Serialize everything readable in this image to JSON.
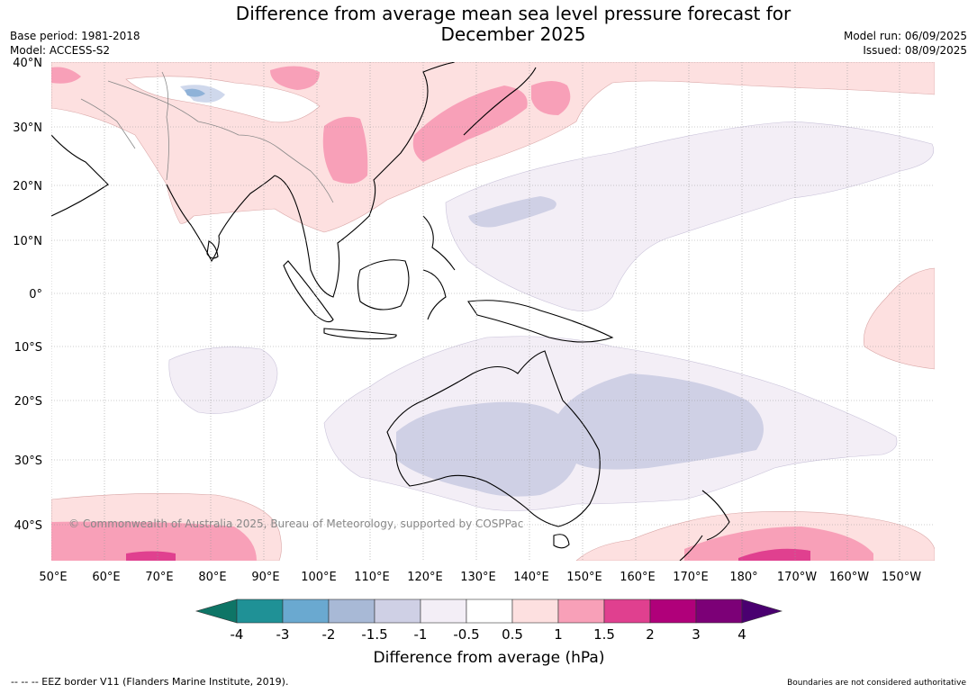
{
  "title_line1": "Difference from average mean sea level pressure forecast for",
  "title_line2": "December 2025",
  "base_period": "Base period: 1981-2018",
  "model": "Model: ACCESS-S2",
  "model_run": "Model run: 06/09/2025",
  "issued": "Issued: 08/09/2025",
  "copyright": "© Commonwealth of Australia 2025, Bureau of Meteorology, supported by COSPPac",
  "lat_labels": [
    "40°N",
    "30°N",
    "20°N",
    "10°N",
    "0°",
    "10°S",
    "20°S",
    "30°S",
    "40°S"
  ],
  "lon_labels": [
    "50°E",
    "60°E",
    "70°E",
    "80°E",
    "90°E",
    "100°E",
    "110°E",
    "120°E",
    "130°E",
    "140°E",
    "150°E",
    "160°E",
    "170°E",
    "180°",
    "170°W",
    "160°W",
    "150°W"
  ],
  "colorbar": {
    "ticks": [
      "-4",
      "-3",
      "-2",
      "-1.5",
      "-1",
      "-0.5",
      "0.5",
      "1",
      "1.5",
      "2",
      "3",
      "4"
    ],
    "colors": [
      "#0e7566",
      "#1f9196",
      "#6aa9d0",
      "#a8b9d6",
      "#cfd0e5",
      "#f3eef6",
      "#ffffff",
      "#fde0e0",
      "#f8a0b8",
      "#e0408f",
      "#b0007a",
      "#7c0077",
      "#4a0070"
    ],
    "label": "Difference from average (hPa)"
  },
  "footer_left": "--  --  -- EEZ border V11 (Flanders Marine Institute, 2019).",
  "footer_right": "Boundaries are not considered authoritative"
}
